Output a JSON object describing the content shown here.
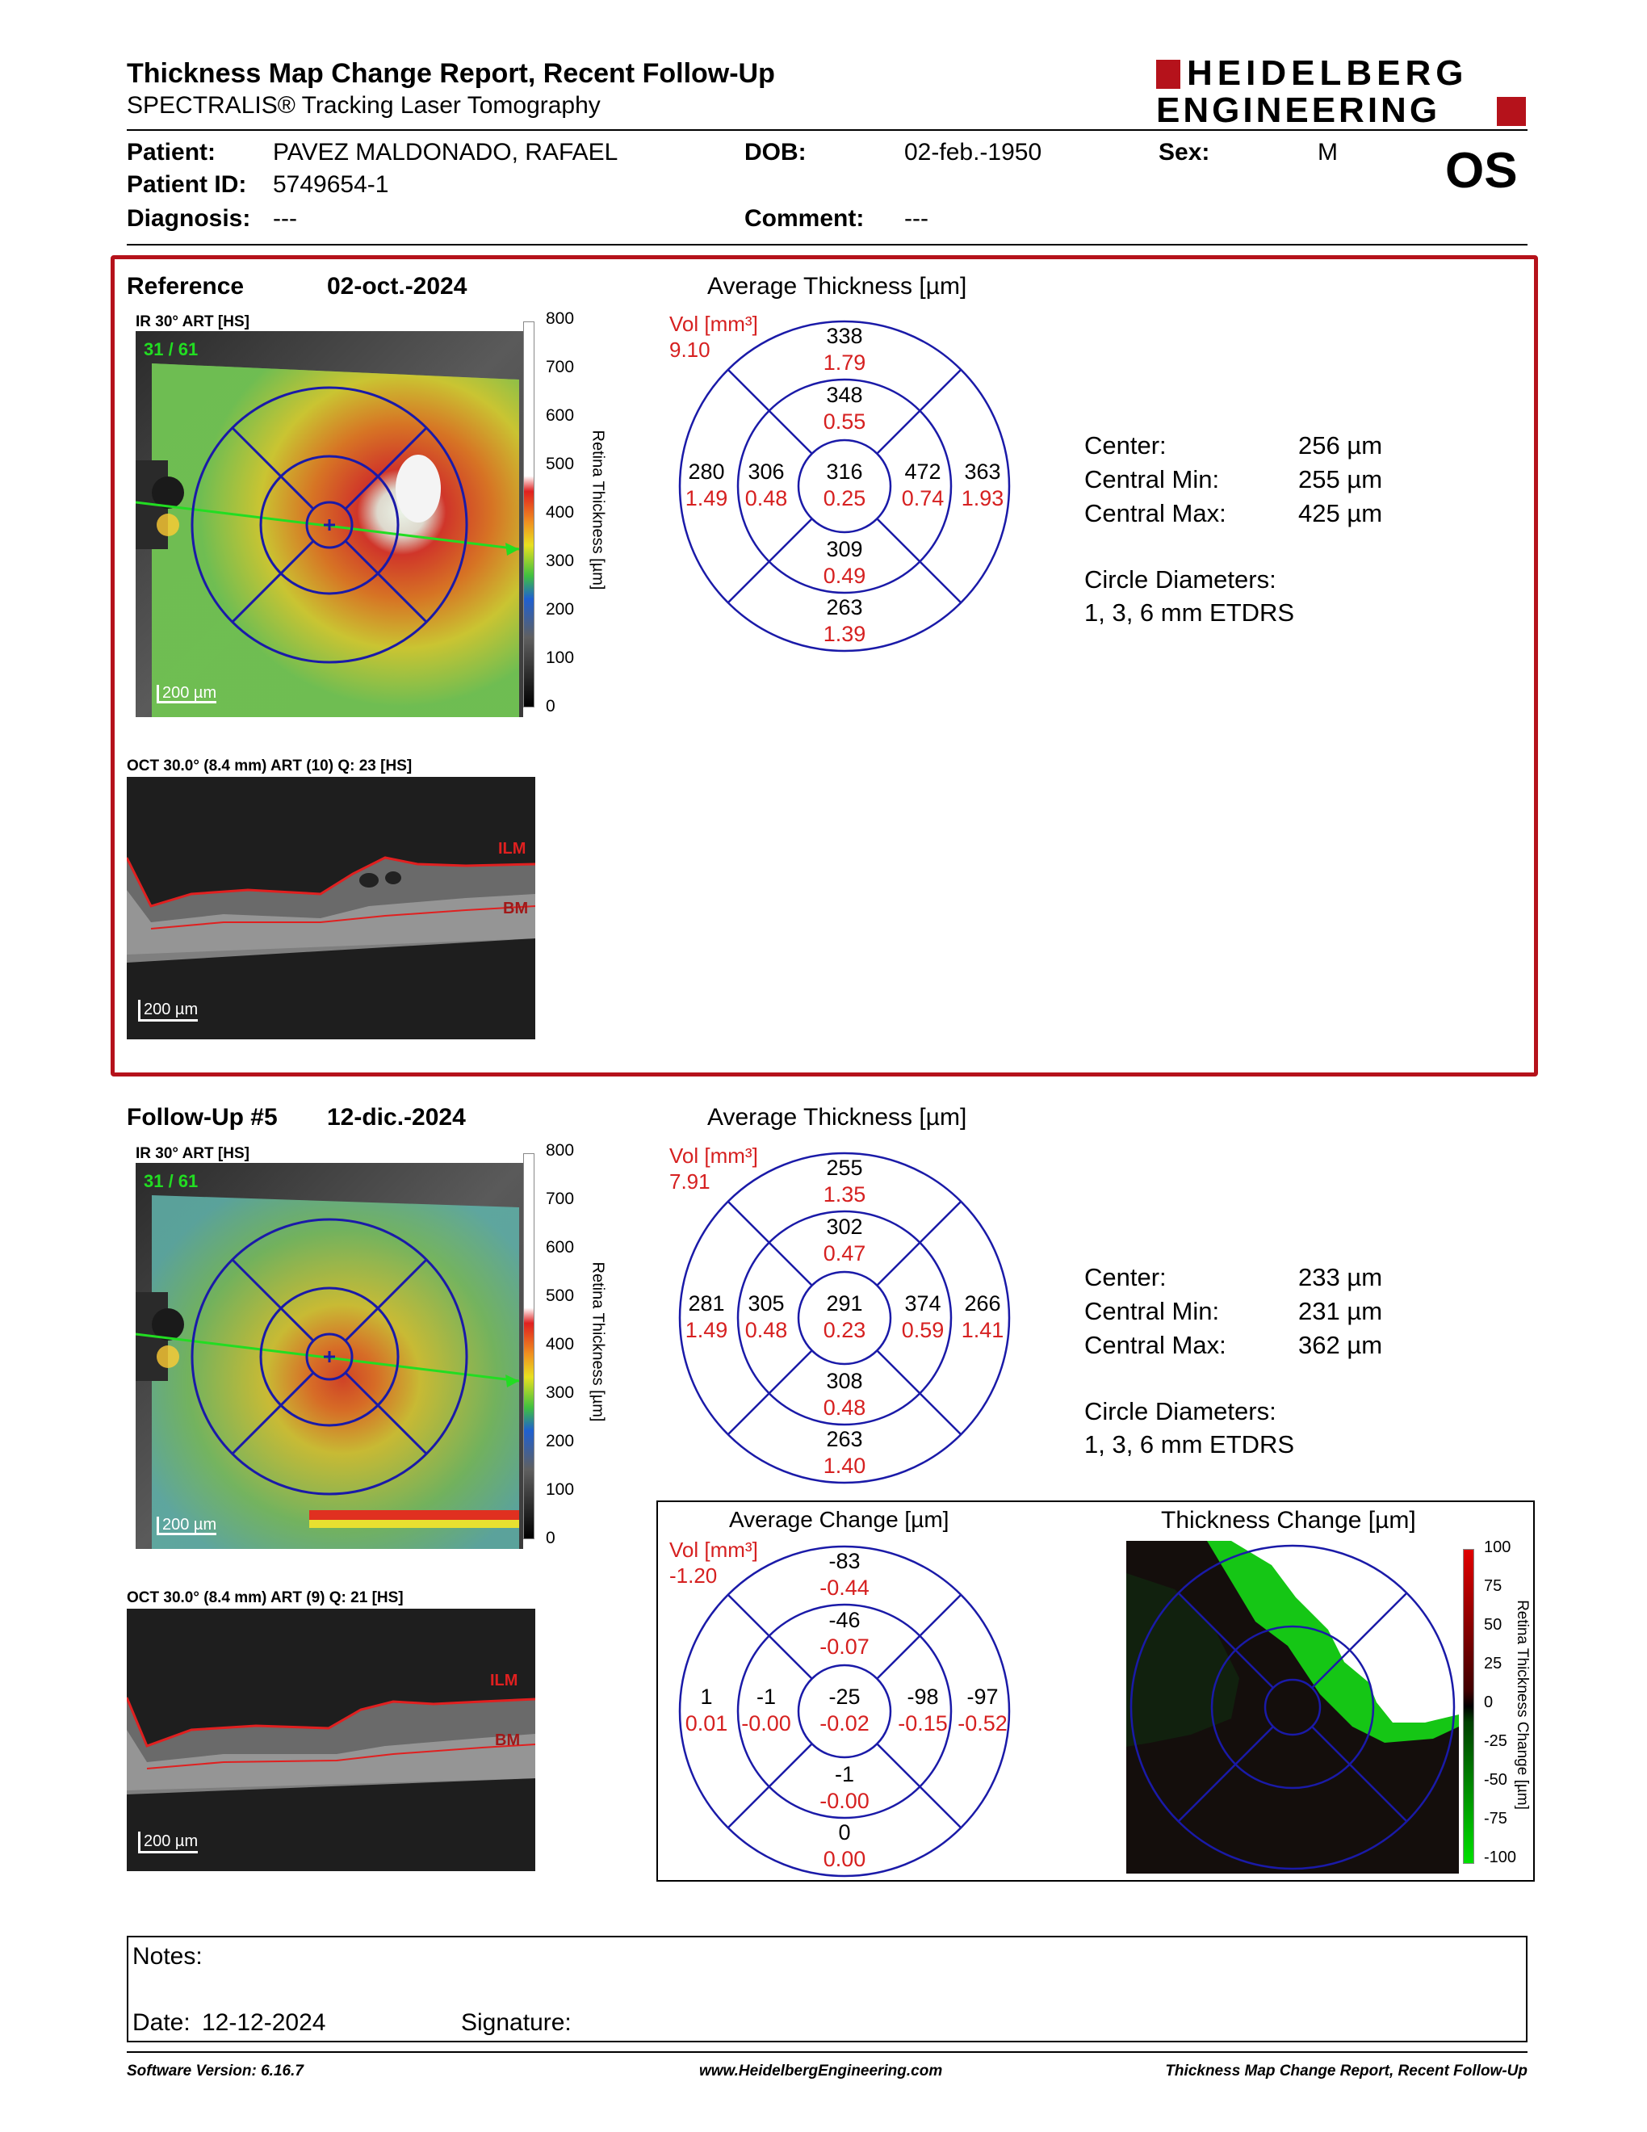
{
  "header": {
    "title": "Thickness Map Change Report, Recent Follow-Up",
    "subtitle": "SPECTRALIS® Tracking Laser Tomography",
    "logo_line1": "HEIDELBERG",
    "logo_line2": "ENGINEERING",
    "eye": "OS"
  },
  "patient": {
    "name_label": "Patient:",
    "name": "PAVEZ MALDONADO, RAFAEL",
    "id_label": "Patient ID:",
    "id": "5749654-1",
    "diagnosis_label": "Diagnosis:",
    "diagnosis": "---",
    "dob_label": "DOB:",
    "dob": "02-feb.-1950",
    "comment_label": "Comment:",
    "comment": "---",
    "sex_label": "Sex:",
    "sex": "M"
  },
  "reference": {
    "label": "Reference",
    "date": "02-oct.-2024",
    "ir_label": "IR 30° ART [HS]",
    "frame": "31 / 61",
    "scale": "200 µm",
    "oct_label": "OCT 30.0° (8.4 mm) ART (10) Q: 23 [HS]",
    "oct_scale": "200 µm",
    "ilm": "ILM",
    "bm": "BM",
    "avg_title": "Average Thickness [µm]",
    "vol_label": "Vol [mm³]",
    "vol": "9.10",
    "etdrs": {
      "superior_outer": [
        "338",
        "1.79"
      ],
      "superior_inner": [
        "348",
        "0.55"
      ],
      "center": [
        "316",
        "0.25"
      ],
      "nasal_outer": [
        "280",
        "1.49"
      ],
      "nasal_inner": [
        "306",
        "0.48"
      ],
      "temporal_inner": [
        "472",
        "0.74"
      ],
      "temporal_outer": [
        "363",
        "1.93"
      ],
      "inferior_inner": [
        "309",
        "0.49"
      ],
      "inferior_outer": [
        "263",
        "1.39"
      ]
    },
    "stats": {
      "center_label": "Center:",
      "center": "256 µm",
      "min_label": "Central Min:",
      "min": "255 µm",
      "max_label": "Central Max:",
      "max": "425 µm",
      "diam_label": "Circle Diameters:",
      "diam": "1, 3, 6 mm ETDRS"
    }
  },
  "followup": {
    "label": "Follow-Up #5",
    "date": "12-dic.-2024",
    "ir_label": "IR 30° ART [HS]",
    "frame": "31 / 61",
    "scale": "200 µm",
    "oct_label": "OCT 30.0° (8.4 mm) ART (9) Q: 21 [HS]",
    "oct_scale": "200 µm",
    "ilm": "ILM",
    "bm": "BM",
    "avg_title": "Average Thickness [µm]",
    "vol_label": "Vol [mm³]",
    "vol": "7.91",
    "etdrs": {
      "superior_outer": [
        "255",
        "1.35"
      ],
      "superior_inner": [
        "302",
        "0.47"
      ],
      "center": [
        "291",
        "0.23"
      ],
      "nasal_outer": [
        "281",
        "1.49"
      ],
      "nasal_inner": [
        "305",
        "0.48"
      ],
      "temporal_inner": [
        "374",
        "0.59"
      ],
      "temporal_outer": [
        "266",
        "1.41"
      ],
      "inferior_inner": [
        "308",
        "0.48"
      ],
      "inferior_outer": [
        "263",
        "1.40"
      ]
    },
    "stats": {
      "center_label": "Center:",
      "center": "233 µm",
      "min_label": "Central Min:",
      "min": "231 µm",
      "max_label": "Central Max:",
      "max": "362 µm",
      "diam_label": "Circle Diameters:",
      "diam": "1, 3, 6 mm ETDRS"
    }
  },
  "change": {
    "avg_title": "Average Change [µm]",
    "map_title": "Thickness Change [µm]",
    "vol_label": "Vol [mm³]",
    "vol": "-1.20",
    "etdrs": {
      "superior_outer": [
        "-83",
        "-0.44"
      ],
      "superior_inner": [
        "-46",
        "-0.07"
      ],
      "center": [
        "-25",
        "-0.02"
      ],
      "nasal_outer": [
        "1",
        "0.01"
      ],
      "nasal_inner": [
        "-1",
        "-0.00"
      ],
      "temporal_inner": [
        "-98",
        "-0.15"
      ],
      "temporal_outer": [
        "-97",
        "-0.52"
      ],
      "inferior_inner": [
        "-1",
        "-0.00"
      ],
      "inferior_outer": [
        "0",
        "0.00"
      ]
    },
    "scale_axis": "Retina Thickness Change [µm]",
    "scale_ticks": [
      "100",
      "75",
      "50",
      "25",
      "0",
      "-25",
      "-50",
      "-75",
      "-100"
    ]
  },
  "thickness_scale": {
    "axis": "Retina Thickness [µm]",
    "ticks": [
      "800",
      "700",
      "600",
      "500",
      "400",
      "300",
      "200",
      "100",
      "0"
    ]
  },
  "notes": {
    "notes_label": "Notes:",
    "date_label": "Date:",
    "date": "12-12-2024",
    "signature_label": "Signature:"
  },
  "footer": {
    "software": "Software Version: 6.16.7",
    "url": "www.HeidelbergEngineering.com",
    "report": "Thickness Map Change Report, Recent Follow-Up"
  },
  "colors": {
    "frame_red": "#b5121b",
    "etdrs_blue": "#1a1aa8",
    "value_red": "#d62020",
    "logo_red": "#b5121b"
  }
}
